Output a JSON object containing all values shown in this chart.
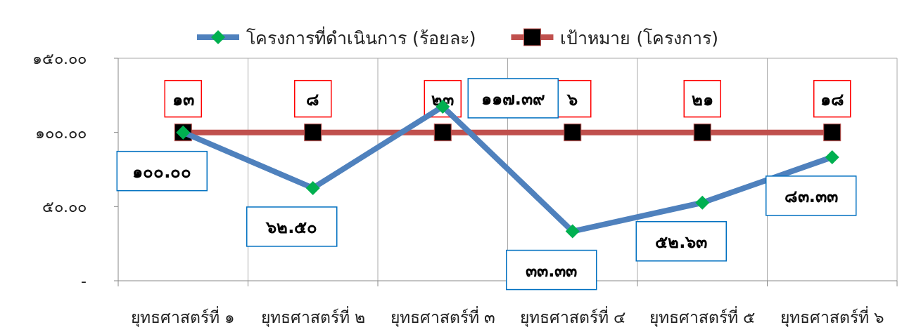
{
  "chart_data": {
    "type": "line",
    "categories": [
      "ยุทธศาสตร์ที่ ๑",
      "ยุทธศาสตร์ที่ ๒",
      "ยุทธศาสตร์ที่ ๓",
      "ยุทธศาสตร์ที่ ๔",
      "ยุทธศาสตร์ที่ ๕",
      "ยุทธศาสตร์ที่ ๖"
    ],
    "series": [
      {
        "name": "โครงการที่ดำเนินการ (ร้อยละ)",
        "color": "#4f81bd",
        "marker": "diamond",
        "colors": [
          "#00b050",
          "#00b050",
          "#00b050",
          "#00b050",
          "#00b050",
          "#00b050"
        ],
        "values": [
          100,
          62.5,
          117.39,
          33.33,
          52.63,
          83.33
        ],
        "value_labels": [
          "๑๐๐.๐๐",
          "๖๒.๕๐",
          "๑๑๗.๓๙",
          "๓๓.๓๓",
          "๕๒.๖๓",
          "๘๓.๓๓"
        ]
      },
      {
        "name": "เป้าหมาย (โครงการ)",
        "color": "#c0504d",
        "marker": "square",
        "colors": [
          "#000000",
          "#000000",
          "#000000",
          "#000000",
          "#000000",
          "#000000"
        ],
        "values": [
          100,
          100,
          100,
          100,
          100,
          100
        ]
      }
    ],
    "annotations": [
      {
        "text": "๑๓",
        "x": "ยุทธศาสตร์ที่ ๑",
        "y": 100
      },
      {
        "text": "๘",
        "x": "ยุทธศาสตร์ที่ ๒",
        "y": 100
      },
      {
        "text": "๒๓",
        "x": "ยุทธศาสตร์ที่ ๓",
        "y": 100
      },
      {
        "text": "๖",
        "x": "ยุทธศาสตร์ที่ ๔",
        "y": 100
      },
      {
        "text": "๒๑",
        "x": "ยุทธศาสตร์ที่ ๕",
        "y": 100
      },
      {
        "text": "๑๘",
        "x": "ยุทธศาสตร์ที่ ๖",
        "y": 100
      }
    ],
    "ylim": [
      0,
      150
    ],
    "yticks": [
      {
        "value": 0,
        "label": "-"
      },
      {
        "value": 50,
        "label": "๕๐.๐๐"
      },
      {
        "value": 100,
        "label": "๑๐๐.๐๐"
      },
      {
        "value": 150,
        "label": "๑๕๐.๐๐"
      }
    ],
    "grid": "x",
    "legend": "top"
  }
}
